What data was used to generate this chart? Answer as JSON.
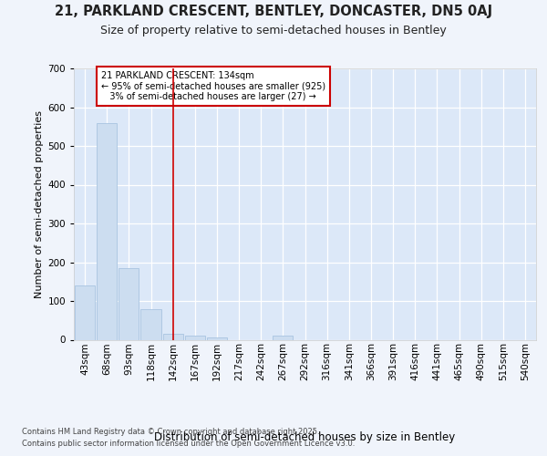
{
  "title1": "21, PARKLAND CRESCENT, BENTLEY, DONCASTER, DN5 0AJ",
  "title2": "Size of property relative to semi-detached houses in Bentley",
  "xlabel": "Distribution of semi-detached houses by size in Bentley",
  "ylabel": "Number of semi-detached properties",
  "bin_labels": [
    "43sqm",
    "68sqm",
    "93sqm",
    "118sqm",
    "142sqm",
    "167sqm",
    "192sqm",
    "217sqm",
    "242sqm",
    "267sqm",
    "292sqm",
    "316sqm",
    "341sqm",
    "366sqm",
    "391sqm",
    "416sqm",
    "441sqm",
    "465sqm",
    "490sqm",
    "515sqm",
    "540sqm"
  ],
  "bin_values": [
    140,
    558,
    185,
    78,
    15,
    10,
    5,
    0,
    0,
    10,
    0,
    0,
    0,
    0,
    0,
    0,
    0,
    0,
    0,
    0,
    0
  ],
  "bar_color": "#ccddf0",
  "bar_edgecolor": "#a8c4e0",
  "vline_x": 4.0,
  "vline_color": "#cc0000",
  "annotation_text": "21 PARKLAND CRESCENT: 134sqm\n← 95% of semi-detached houses are smaller (925)\n   3% of semi-detached houses are larger (27) →",
  "annotation_box_facecolor": "#ffffff",
  "annotation_box_edgecolor": "#cc0000",
  "ylim": [
    0,
    700
  ],
  "yticks": [
    0,
    100,
    200,
    300,
    400,
    500,
    600,
    700
  ],
  "footer1": "Contains HM Land Registry data © Crown copyright and database right 2025.",
  "footer2": "Contains public sector information licensed under the Open Government Licence v3.0.",
  "bg_color": "#f0f4fb",
  "plot_bg_color": "#dce8f8",
  "title1_fontsize": 10.5,
  "title2_fontsize": 9,
  "xlabel_fontsize": 8.5,
  "ylabel_fontsize": 8,
  "tick_fontsize": 7.5,
  "footer_fontsize": 6,
  "annot_fontsize": 7
}
